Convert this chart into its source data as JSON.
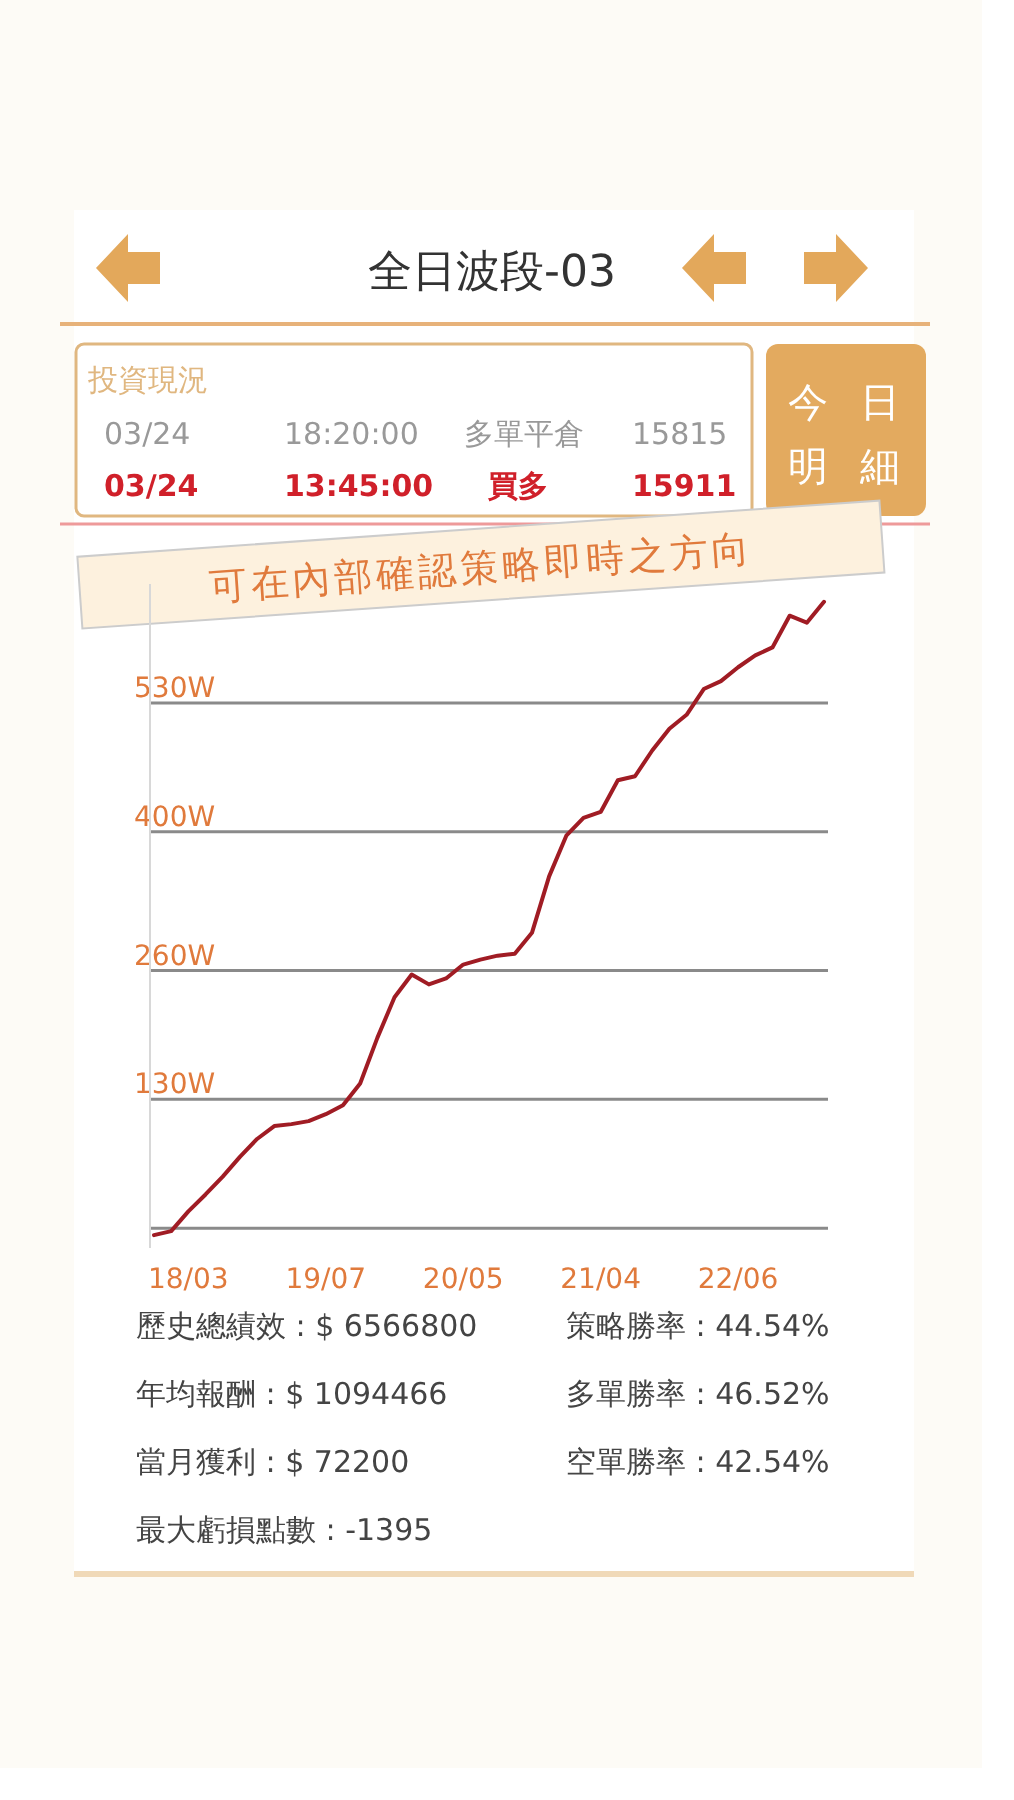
{
  "chart_data": {
    "type": "line",
    "title": "全日波段-03",
    "annotations": [
      "投資現況",
      "03/24",
      "18:20:00",
      "多單平倉",
      "15815",
      "03/24",
      "13:45:00",
      "買多",
      "15911",
      "今日明細",
      "可在內部確認策略即時之方向",
      "歷史總績效 : $ 6566800",
      "策略勝率 : 44.54%",
      "年均報酬 : $ 1094466",
      "多單勝率 : 46.52%",
      "當月獲利 : $ 72200",
      "空單勝率 : 42.54%",
      "最大虧損點數 : -1395"
    ],
    "categories": [
      null,
      null,
      "18/03",
      null,
      null,
      null,
      null,
      null,
      null,
      null,
      "19/07",
      null,
      null,
      null,
      null,
      null,
      null,
      null,
      "20/05",
      null,
      null,
      null,
      null,
      null,
      null,
      null,
      "21/04",
      null,
      null,
      null,
      null,
      null,
      null,
      null,
      "22/06",
      null,
      null,
      null,
      null,
      null
    ],
    "ylim": [
      -20,
      650
    ],
    "yticks": [
      {
        "value": 0,
        "label": null
      },
      {
        "value": 130,
        "label": "130W"
      },
      {
        "value": 260,
        "label": "260W"
      },
      {
        "value": 400,
        "label": "400W"
      },
      {
        "value": 530,
        "label": "530W"
      }
    ],
    "grid": "y",
    "marker": "none",
    "line_style": "solid",
    "series": [
      {
        "color": "#a01c24",
        "values": [
          -7,
          -3,
          17,
          34,
          52,
          72,
          90,
          103,
          105,
          108,
          115,
          124,
          146,
          192,
          233,
          256,
          246,
          252,
          266,
          271,
          275,
          277,
          298,
          355,
          396,
          414,
          420,
          452,
          456,
          482,
          504,
          518,
          544,
          552,
          566,
          578,
          586,
          618,
          611,
          632
        ]
      }
    ]
  }
}
